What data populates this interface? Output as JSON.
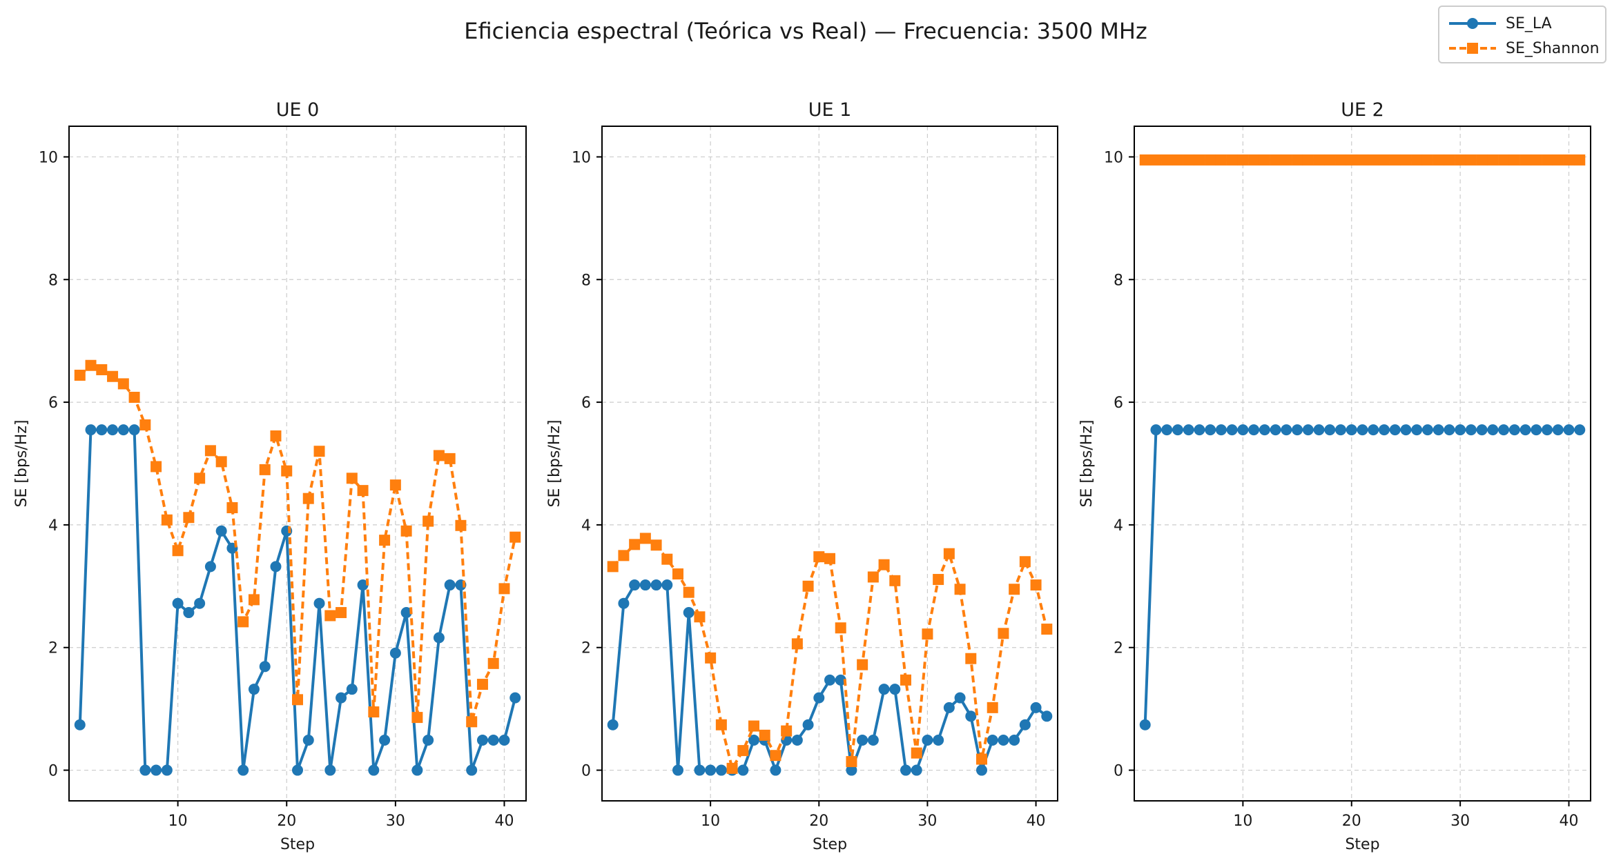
{
  "figure_title": "Eficiencia espectral (Teórica vs Real) — Frecuencia: 3500 MHz",
  "legend": {
    "placement": "top-right",
    "items": [
      {
        "name": "SE_LA",
        "color": "#1f77b4",
        "marker": "circle",
        "linestyle": "solid"
      },
      {
        "name": "SE_Shannon",
        "color": "#ff7f0e",
        "marker": "square",
        "linestyle": "dashed"
      }
    ]
  },
  "colors": {
    "SE_LA": "#1f77b4",
    "SE_Shannon": "#ff7f0e",
    "grid": "#cccccc"
  },
  "chart_data": [
    {
      "type": "line",
      "title": "UE 0",
      "xlabel": "Step",
      "ylabel": "SE [bps/Hz]",
      "xlim": [
        0,
        42
      ],
      "ylim": [
        -0.5,
        10.5
      ],
      "xticks": [
        10,
        20,
        30,
        40
      ],
      "yticks": [
        0,
        2,
        4,
        6,
        8,
        10
      ],
      "grid": true,
      "x": [
        1,
        2,
        3,
        4,
        5,
        6,
        7,
        8,
        9,
        10,
        11,
        12,
        13,
        14,
        15,
        16,
        17,
        18,
        19,
        20,
        21,
        22,
        23,
        24,
        25,
        26,
        27,
        28,
        29,
        30,
        31,
        32,
        33,
        34,
        35,
        36,
        37,
        38,
        39,
        40,
        41
      ],
      "series": [
        {
          "name": "SE_LA",
          "values": [
            0.74,
            5.55,
            5.55,
            5.55,
            5.55,
            5.55,
            0,
            0,
            0,
            2.72,
            2.57,
            2.72,
            3.32,
            3.9,
            3.62,
            0,
            1.32,
            1.69,
            3.32,
            3.9,
            0,
            0.49,
            2.72,
            0,
            1.18,
            1.32,
            3.02,
            0,
            0.49,
            1.91,
            2.57,
            0,
            0.49,
            2.16,
            3.02,
            3.02,
            0,
            0.49,
            0.49,
            0.49,
            1.18
          ]
        },
        {
          "name": "SE_Shannon",
          "values": [
            6.44,
            6.6,
            6.53,
            6.42,
            6.3,
            6.08,
            5.63,
            4.95,
            4.08,
            3.58,
            4.12,
            4.76,
            5.21,
            5.03,
            4.28,
            2.42,
            2.78,
            4.9,
            5.45,
            4.88,
            1.15,
            4.43,
            5.2,
            2.52,
            2.57,
            4.76,
            4.56,
            0.95,
            3.75,
            4.65,
            3.9,
            0.86,
            4.06,
            5.13,
            5.08,
            3.99,
            0.79,
            1.4,
            1.74,
            2.96,
            3.8
          ]
        }
      ]
    },
    {
      "type": "line",
      "title": "UE 1",
      "xlabel": "Step",
      "ylabel": "SE [bps/Hz]",
      "xlim": [
        0,
        42
      ],
      "ylim": [
        -0.5,
        10.5
      ],
      "xticks": [
        10,
        20,
        30,
        40
      ],
      "yticks": [
        0,
        2,
        4,
        6,
        8,
        10
      ],
      "grid": true,
      "x": [
        1,
        2,
        3,
        4,
        5,
        6,
        7,
        8,
        9,
        10,
        11,
        12,
        13,
        14,
        15,
        16,
        17,
        18,
        19,
        20,
        21,
        22,
        23,
        24,
        25,
        26,
        27,
        28,
        29,
        30,
        31,
        32,
        33,
        34,
        35,
        36,
        37,
        38,
        39,
        40,
        41
      ],
      "series": [
        {
          "name": "SE_LA",
          "values": [
            0.74,
            2.72,
            3.02,
            3.02,
            3.02,
            3.02,
            0,
            2.57,
            0,
            0,
            0,
            0,
            0,
            0.49,
            0.49,
            0,
            0.49,
            0.49,
            0.74,
            1.18,
            1.47,
            1.47,
            0,
            0.49,
            0.49,
            1.32,
            1.32,
            0,
            0,
            0.49,
            0.49,
            1.02,
            1.18,
            0.88,
            0,
            0.49,
            0.49,
            0.49,
            0.74,
            1.02,
            0.88
          ]
        },
        {
          "name": "SE_Shannon",
          "values": [
            3.32,
            3.5,
            3.68,
            3.78,
            3.67,
            3.44,
            3.2,
            2.9,
            2.5,
            1.83,
            0.74,
            0.03,
            0.32,
            0.72,
            0.57,
            0.24,
            0.64,
            2.06,
            3,
            3.48,
            3.45,
            2.32,
            0.14,
            1.72,
            3.15,
            3.35,
            3.09,
            1.47,
            0.28,
            2.22,
            3.11,
            3.53,
            2.95,
            1.82,
            0.18,
            1.02,
            2.23,
            2.95,
            3.4,
            3.02,
            2.3
          ]
        }
      ]
    },
    {
      "type": "line",
      "title": "UE 2",
      "xlabel": "Step",
      "ylabel": "SE [bps/Hz]",
      "xlim": [
        0,
        42
      ],
      "ylim": [
        -0.5,
        10.5
      ],
      "xticks": [
        10,
        20,
        30,
        40
      ],
      "yticks": [
        0,
        2,
        4,
        6,
        8,
        10
      ],
      "grid": true,
      "x": [
        1,
        2,
        3,
        4,
        5,
        6,
        7,
        8,
        9,
        10,
        11,
        12,
        13,
        14,
        15,
        16,
        17,
        18,
        19,
        20,
        21,
        22,
        23,
        24,
        25,
        26,
        27,
        28,
        29,
        30,
        31,
        32,
        33,
        34,
        35,
        36,
        37,
        38,
        39,
        40,
        41
      ],
      "series": [
        {
          "name": "SE_LA",
          "values": [
            0.74,
            5.55,
            5.55,
            5.55,
            5.55,
            5.55,
            5.55,
            5.55,
            5.55,
            5.55,
            5.55,
            5.55,
            5.55,
            5.55,
            5.55,
            5.55,
            5.55,
            5.55,
            5.55,
            5.55,
            5.55,
            5.55,
            5.55,
            5.55,
            5.55,
            5.55,
            5.55,
            5.55,
            5.55,
            5.55,
            5.55,
            5.55,
            5.55,
            5.55,
            5.55,
            5.55,
            5.55,
            5.55,
            5.55,
            5.55,
            5.55
          ]
        },
        {
          "name": "SE_Shannon",
          "values": [
            9.95,
            9.95,
            9.95,
            9.95,
            9.95,
            9.95,
            9.95,
            9.95,
            9.95,
            9.95,
            9.95,
            9.95,
            9.95,
            9.95,
            9.95,
            9.95,
            9.95,
            9.95,
            9.95,
            9.95,
            9.95,
            9.95,
            9.95,
            9.95,
            9.95,
            9.95,
            9.95,
            9.95,
            9.95,
            9.95,
            9.95,
            9.95,
            9.95,
            9.95,
            9.95,
            9.95,
            9.95,
            9.95,
            9.95,
            9.95,
            9.95
          ]
        }
      ]
    }
  ]
}
